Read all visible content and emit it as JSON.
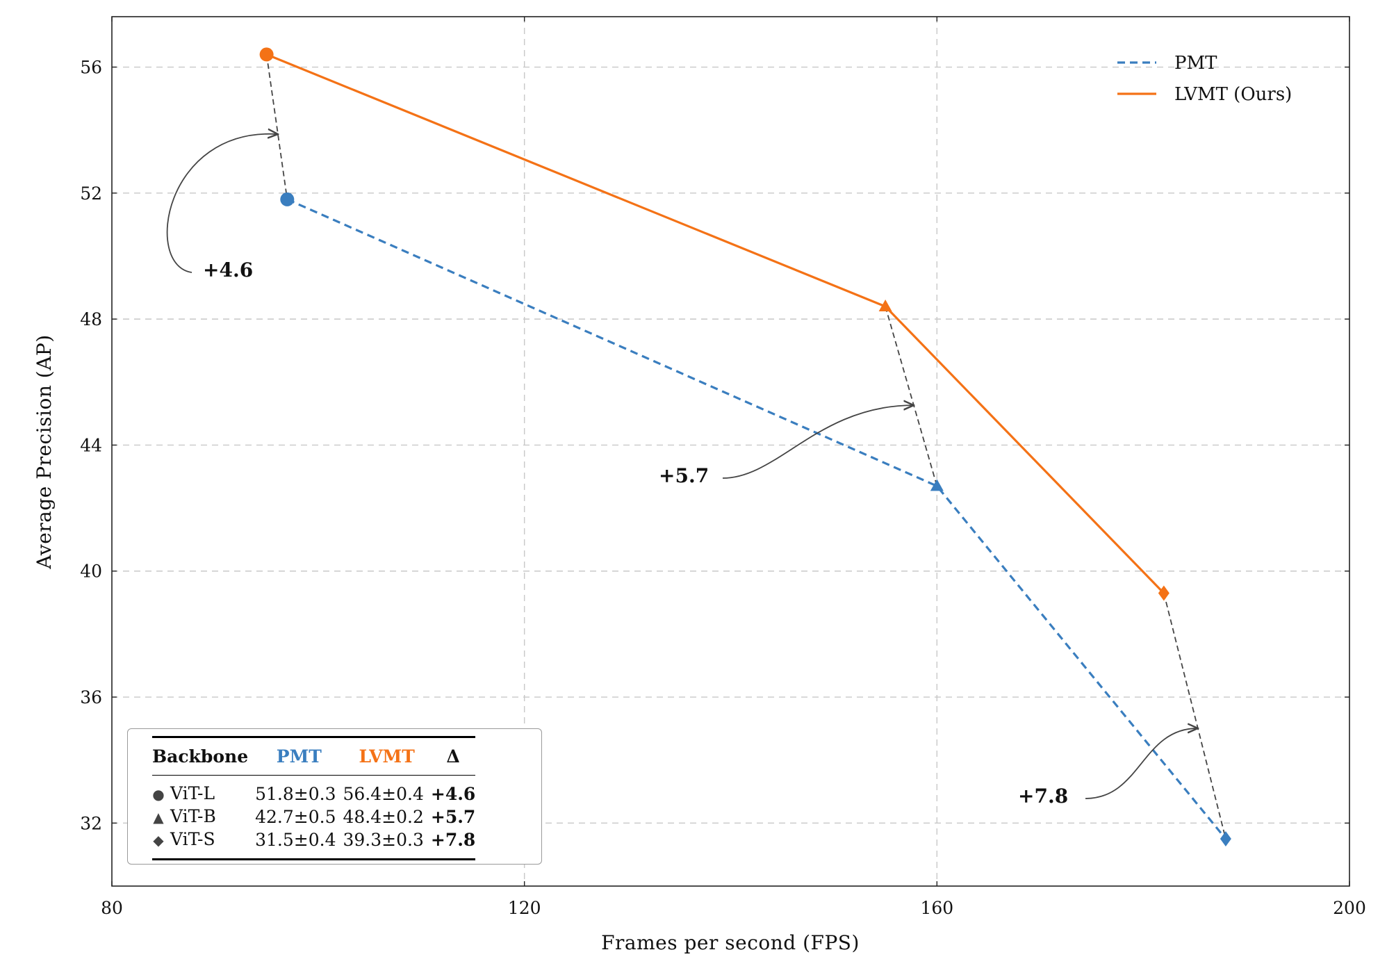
{
  "chart_data": {
    "type": "line",
    "xlabel": "Frames per second (FPS)",
    "ylabel": "Average Precision (AP)",
    "xlim": [
      80,
      200
    ],
    "ylim": [
      30,
      57.6
    ],
    "xticks": [
      80,
      120,
      160,
      200
    ],
    "yticks": [
      32,
      36,
      40,
      44,
      48,
      52,
      56
    ],
    "grid": true,
    "legend_position": "top-right",
    "series": [
      {
        "name": "PMT",
        "color": "#3a7ebf",
        "dash": true,
        "points": [
          {
            "x": 97,
            "y": 51.8,
            "marker": "circle"
          },
          {
            "x": 160,
            "y": 42.7,
            "marker": "triangle"
          },
          {
            "x": 188,
            "y": 31.5,
            "marker": "diamond"
          }
        ]
      },
      {
        "name": "LVMT (Ours)",
        "color": "#f47216",
        "dash": false,
        "points": [
          {
            "x": 95,
            "y": 56.4,
            "marker": "circle"
          },
          {
            "x": 155,
            "y": 48.4,
            "marker": "triangle"
          },
          {
            "x": 182,
            "y": 39.3,
            "marker": "diamond"
          }
        ]
      }
    ],
    "annotations": [
      {
        "text": "+4.6",
        "from_series": 0,
        "to_series": 1,
        "index": 0
      },
      {
        "text": "+5.7",
        "from_series": 0,
        "to_series": 1,
        "index": 1
      },
      {
        "text": "+7.8",
        "from_series": 0,
        "to_series": 1,
        "index": 2
      }
    ]
  },
  "inset_table": {
    "headers": [
      "Backbone",
      "PMT",
      "LVMT",
      "Δ"
    ],
    "header_colors": [
      "#111111",
      "#3a7ebf",
      "#f47216",
      "#111111"
    ],
    "rows": [
      {
        "marker": "●",
        "backbone": "ViT-L",
        "pmt": "51.8±0.3",
        "lvmt": "56.4±0.4",
        "delta": "+4.6"
      },
      {
        "marker": "▲",
        "backbone": "ViT-B",
        "pmt": "42.7±0.5",
        "lvmt": "48.4±0.2",
        "delta": "+5.7"
      },
      {
        "marker": "◆",
        "backbone": "ViT-S",
        "pmt": "31.5±0.4",
        "lvmt": "39.3±0.3",
        "delta": "+7.8"
      }
    ]
  }
}
